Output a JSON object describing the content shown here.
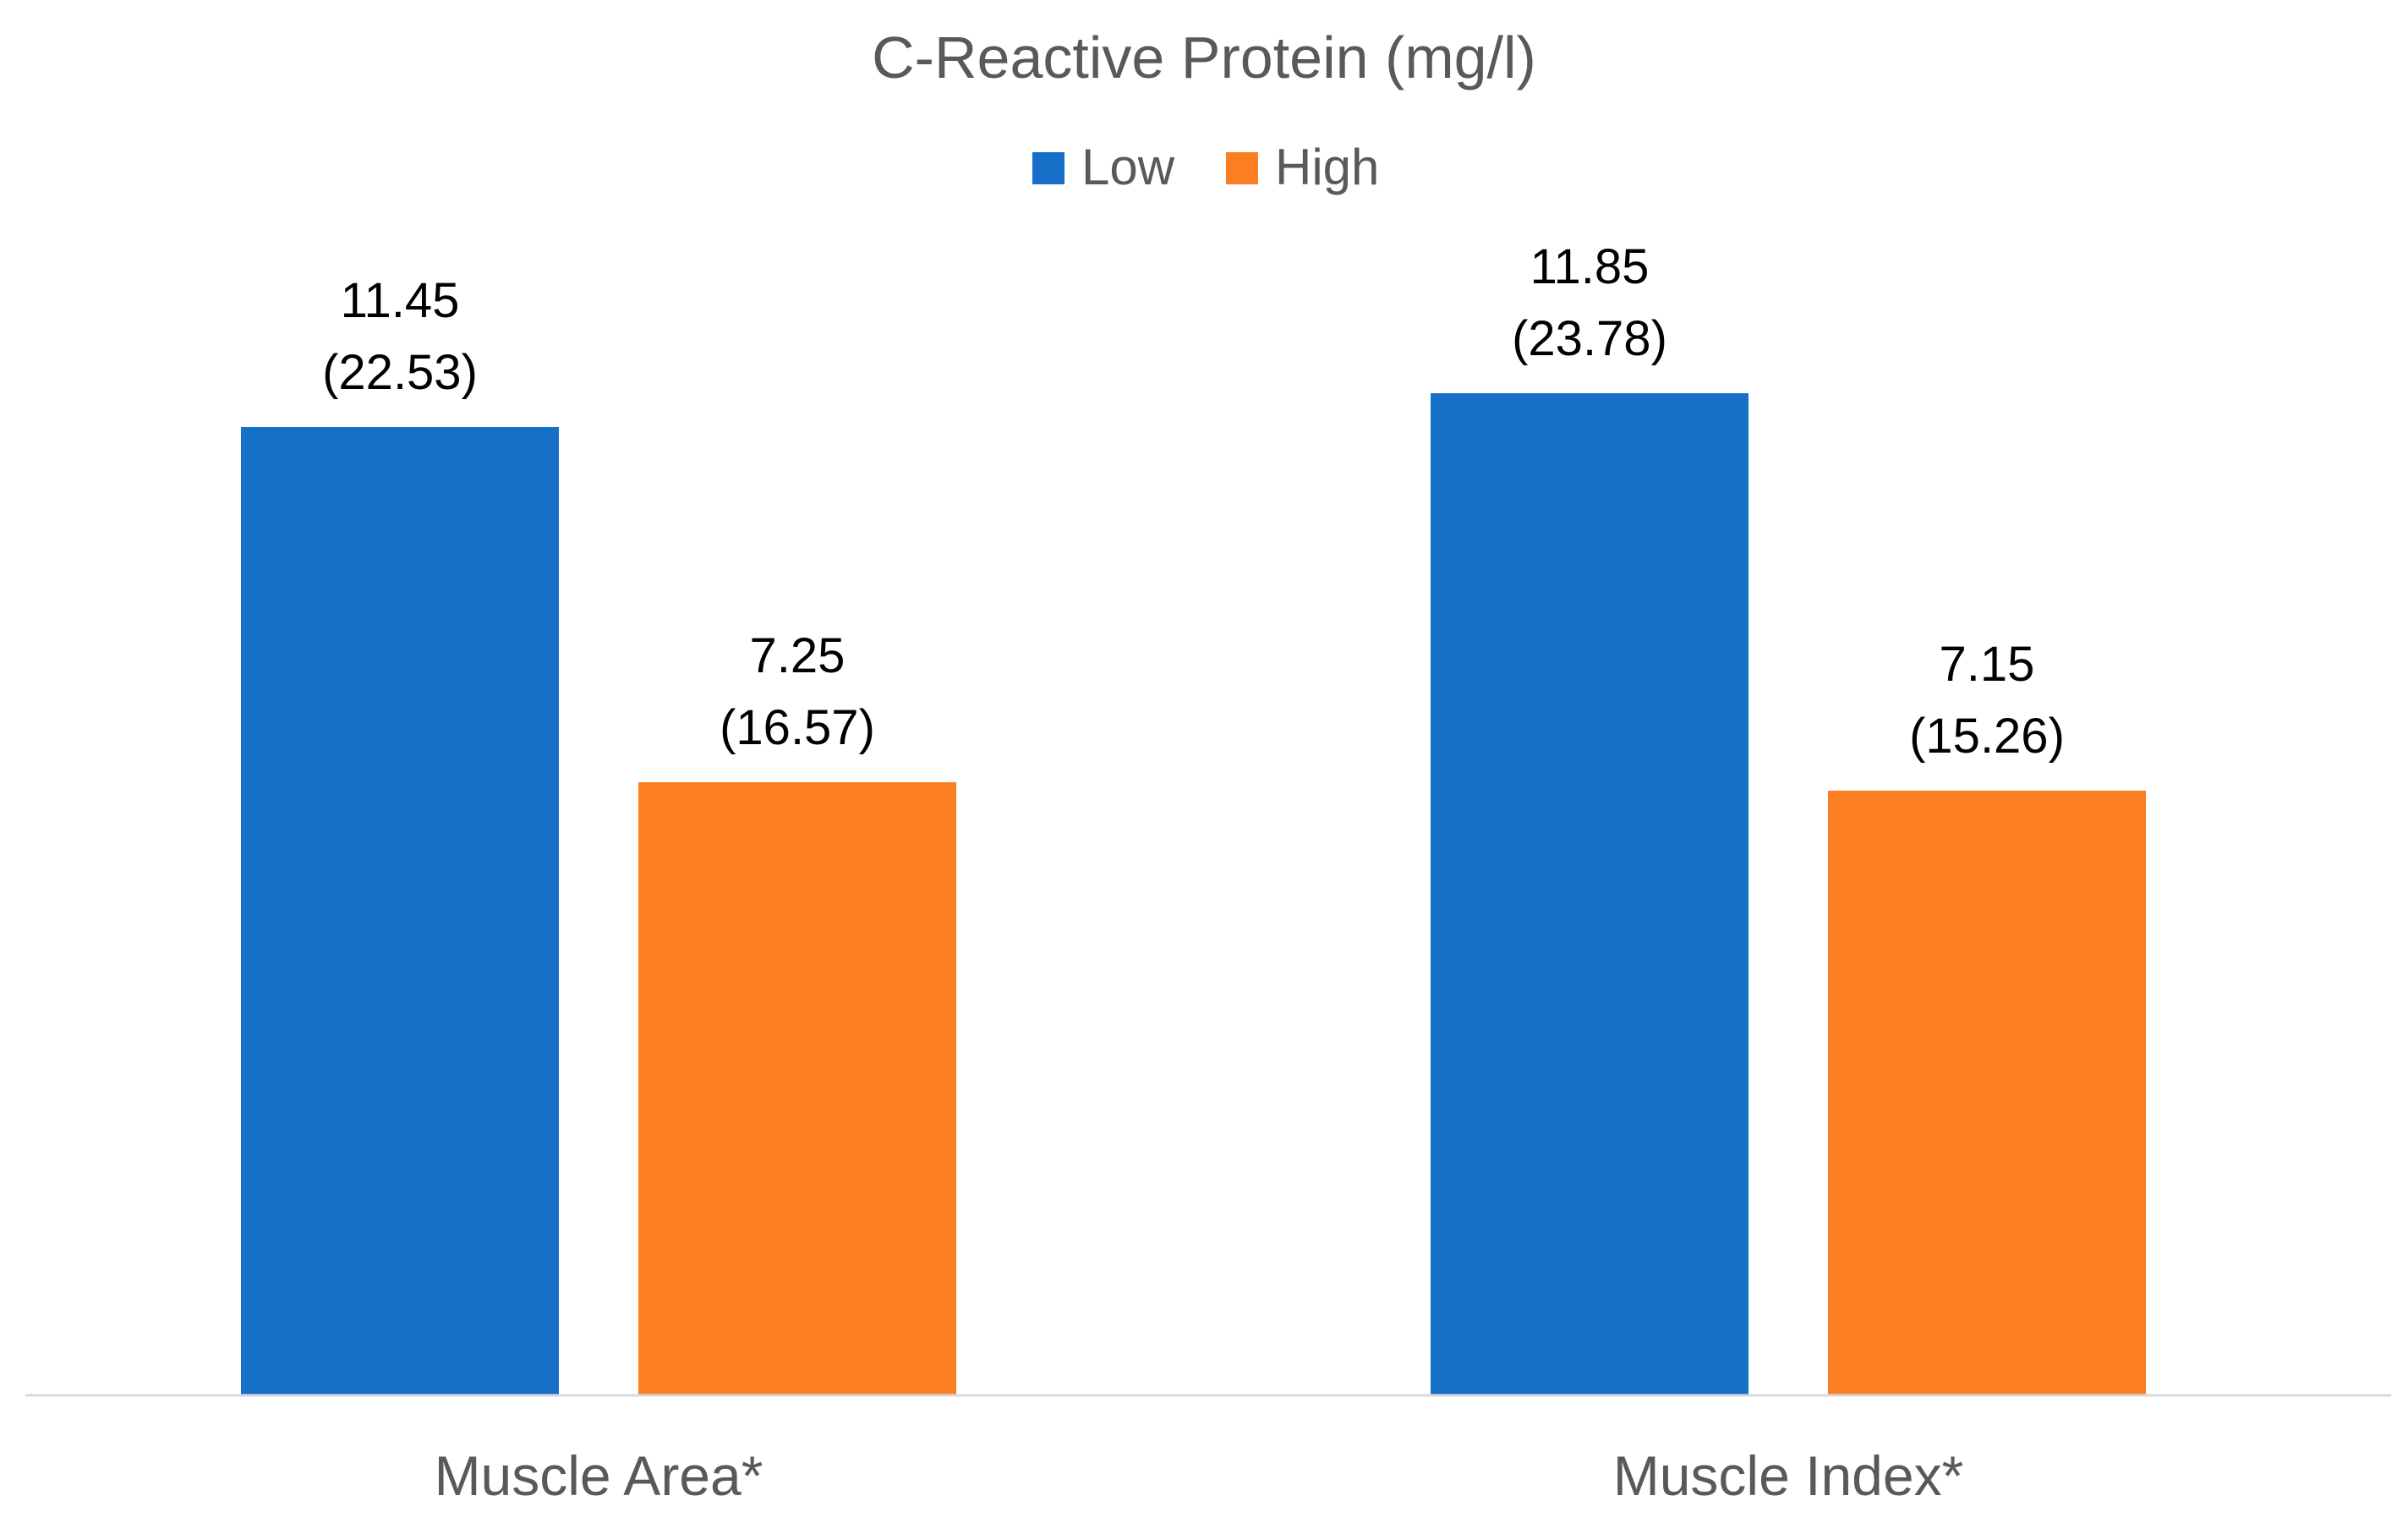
{
  "chart_data": {
    "type": "bar",
    "title": "C-Reactive Protein (mg/l)",
    "categories": [
      "Muscle Area*",
      "Muscle Index*"
    ],
    "series": [
      {
        "name": "Low",
        "color": "#1770C8",
        "values": [
          11.45,
          11.85
        ],
        "labels": [
          "11.45",
          "11.85"
        ],
        "sub_labels": [
          "(22.53)",
          "(23.78)"
        ]
      },
      {
        "name": "High",
        "color": "#FC7E22",
        "values": [
          7.25,
          7.15
        ],
        "labels": [
          "7.25",
          "7.15"
        ],
        "sub_labels": [
          "(16.57)",
          "(15.26)"
        ]
      }
    ],
    "xlabel": "",
    "ylabel": "",
    "ylim": [
      0,
      14
    ],
    "legend_position": "top-center",
    "grid": false,
    "axis_color": "#D9D9D9"
  }
}
